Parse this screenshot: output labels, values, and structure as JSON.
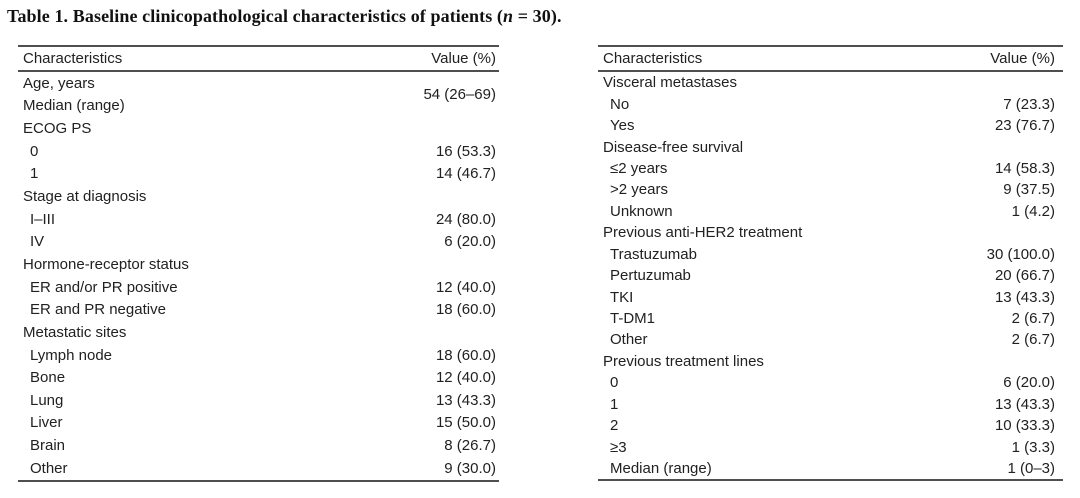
{
  "page_title": {
    "part1": "Table 1. Baseline clinicopathological characteristics of patients (",
    "italic_n": "n",
    "part2": " = 30)."
  },
  "colors": {
    "background": "#ffffff",
    "text": "#212121",
    "rule": "#4f4f4f"
  },
  "tables": [
    {
      "name": "left",
      "columns": {
        "characteristics": "Characteristics",
        "value": "Value (%)"
      },
      "rows": [
        {
          "labels": [
            "Age, years",
            "Median (range)"
          ],
          "value": "54 (26–69)",
          "indent": 0
        },
        {
          "label": "ECOG PS",
          "value": "",
          "indent": 0
        },
        {
          "label": "0",
          "value": "16 (53.3)",
          "indent": 1
        },
        {
          "label": "1",
          "value": "14 (46.7)",
          "indent": 1
        },
        {
          "label": "Stage at diagnosis",
          "value": "",
          "indent": 0
        },
        {
          "label": "I–III",
          "value": "24 (80.0)",
          "indent": 1
        },
        {
          "label": "IV",
          "value": "6 (20.0)",
          "indent": 1
        },
        {
          "label": "Hormone-receptor status",
          "value": "",
          "indent": 0
        },
        {
          "label": "ER and/or PR positive",
          "value": "12 (40.0)",
          "indent": 1
        },
        {
          "label": "ER and PR negative",
          "value": "18 (60.0)",
          "indent": 1
        },
        {
          "label": "Metastatic sites",
          "value": "",
          "indent": 0
        },
        {
          "label": "Lymph node",
          "value": "18 (60.0)",
          "indent": 1
        },
        {
          "label": "Bone",
          "value": "12 (40.0)",
          "indent": 1
        },
        {
          "label": "Lung",
          "value": "13 (43.3)",
          "indent": 1
        },
        {
          "label": "Liver",
          "value": "15 (50.0)",
          "indent": 1
        },
        {
          "label": "Brain",
          "value": "8 (26.7)",
          "indent": 1
        },
        {
          "label": "Other",
          "value": "9 (30.0)",
          "indent": 1
        }
      ]
    },
    {
      "name": "right",
      "columns": {
        "characteristics": "Characteristics",
        "value": "Value (%)"
      },
      "rows": [
        {
          "label": "Visceral metastases",
          "value": "",
          "indent": 0
        },
        {
          "label": "No",
          "value": "7 (23.3)",
          "indent": 1
        },
        {
          "label": "Yes",
          "value": "23 (76.7)",
          "indent": 1
        },
        {
          "label": "Disease-free survival",
          "value": "",
          "indent": 0
        },
        {
          "label": "≤2 years",
          "value": "14 (58.3)",
          "indent": 1
        },
        {
          "label": ">2 years",
          "value": "9 (37.5)",
          "indent": 1
        },
        {
          "label": "Unknown",
          "value": "1 (4.2)",
          "indent": 1
        },
        {
          "label": "Previous anti-HER2 treatment",
          "value": "",
          "indent": 0
        },
        {
          "label": "Trastuzumab",
          "value": "30 (100.0)",
          "indent": 1
        },
        {
          "label": "Pertuzumab",
          "value": "20 (66.7)",
          "indent": 1
        },
        {
          "label": "TKI",
          "value": "13 (43.3)",
          "indent": 1
        },
        {
          "label": "T-DM1",
          "value": "2 (6.7)",
          "indent": 1
        },
        {
          "label": "Other",
          "value": "2 (6.7)",
          "indent": 1
        },
        {
          "label": "Previous treatment lines",
          "value": "",
          "indent": 0
        },
        {
          "label": "0",
          "value": "6 (20.0)",
          "indent": 1
        },
        {
          "label": "1",
          "value": "13 (43.3)",
          "indent": 1
        },
        {
          "label": "2",
          "value": "10 (33.3)",
          "indent": 1
        },
        {
          "label": "≥3",
          "value": "1 (3.3)",
          "indent": 1
        },
        {
          "label": "Median (range)",
          "value": "1 (0–3)",
          "indent": 1
        }
      ]
    }
  ]
}
